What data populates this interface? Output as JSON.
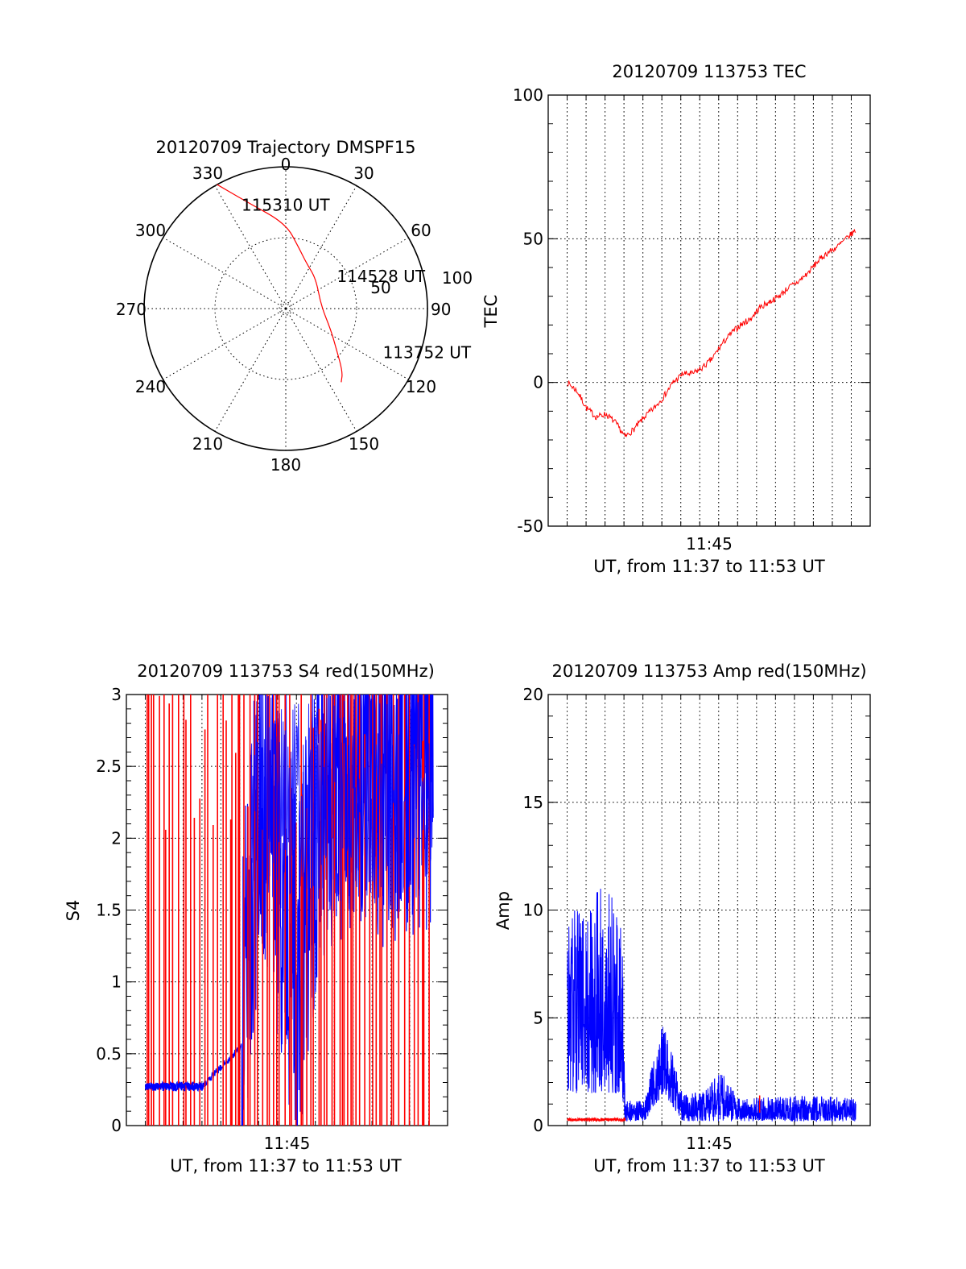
{
  "chart_data": [
    {
      "type": "polar",
      "title": "20120709 Trajectory DMSPF15",
      "angle_ticks": [
        "0",
        "30",
        "60",
        "90",
        "120",
        "150",
        "180",
        "210",
        "240",
        "270",
        "300",
        "330"
      ],
      "radial_ticks": [
        "50",
        "100"
      ],
      "radius_max": 100,
      "series": [
        {
          "color": "#ff0000",
          "points_r_theta": [
            [
              65,
              143
            ],
            [
              60,
              138
            ],
            [
              45,
              128
            ],
            [
              35,
              115
            ],
            [
              25,
              85
            ],
            [
              30,
              45
            ],
            [
              35,
              25
            ],
            [
              44,
              12
            ],
            [
              60,
              0
            ],
            [
              80,
              340
            ],
            [
              100,
              331
            ]
          ]
        }
      ],
      "annotations": [
        {
          "text": "115310 UT",
          "r": 80,
          "theta": 337
        },
        {
          "text": "114528 UT",
          "r": 43,
          "theta": 57
        },
        {
          "text": "113752 UT",
          "r": 75,
          "theta": 114
        }
      ]
    },
    {
      "type": "line",
      "title": "20120709 113753 TEC",
      "ylabel": "TEC",
      "xlabel": "UT, from 11:37 to 11:53 UT",
      "x_tick_labels": [
        "11:45"
      ],
      "ylim": [
        -50,
        100
      ],
      "yticks": [
        -50,
        0,
        50,
        100
      ],
      "grid": true,
      "series": [
        {
          "color": "#ff0000",
          "time_points": [
            "11:38:00",
            "11:38:30",
            "11:39:00",
            "11:39:30",
            "11:40:00",
            "11:40:30",
            "11:41:00",
            "11:41:30",
            "11:42:00",
            "11:42:30",
            "11:43:00",
            "11:43:30",
            "11:44:00",
            "11:44:30",
            "11:45:00",
            "11:45:30",
            "11:46:00",
            "11:46:30",
            "11:47:00",
            "11:47:30",
            "11:48:00",
            "11:48:30",
            "11:49:00",
            "11:49:30",
            "11:50:00",
            "11:50:30",
            "11:51:00",
            "11:51:30",
            "11:52:00",
            "11:52:30",
            "11:53:00"
          ],
          "values": [
            0,
            -3,
            -9,
            -12,
            -11,
            -14,
            -19,
            -16,
            -12,
            -9,
            -5,
            0,
            3,
            3,
            5,
            8,
            13,
            17,
            20,
            22,
            26,
            28,
            30,
            33,
            35,
            38,
            42,
            45,
            47,
            50,
            53
          ]
        }
      ]
    },
    {
      "type": "line",
      "title": "20120709 113753 S4 red(150MHz)",
      "ylabel": "S4",
      "xlabel": "UT, from 11:37 to 11:53 UT",
      "x_tick_labels": [
        "11:45"
      ],
      "ylim": [
        0,
        3
      ],
      "yticks": [
        "0",
        "0.5",
        "1",
        "1.5",
        "2",
        "2.5",
        "3"
      ],
      "grid": true,
      "series": [
        {
          "color": "#0000ff",
          "time_points": [
            "11:38:00",
            "11:39:30",
            "11:41:00",
            "11:43:00",
            "11:44:00",
            "11:46:00",
            "11:47:00",
            "11:48:30",
            "11:50:00",
            "11:51:30",
            "11:53:00"
          ],
          "values": [
            0.27,
            0.28,
            0.28,
            0.55,
            2.6,
            1.0,
            2.4,
            2.6,
            2.5,
            2.6,
            2.6
          ]
        },
        {
          "color": "#ff0000",
          "description_values": "values saturate between 0 and 3 throughout the interval",
          "time_points": [
            "11:38:00",
            "11:53:00"
          ],
          "values": [
            3,
            3
          ]
        }
      ]
    },
    {
      "type": "line",
      "title": "20120709 113753 Amp red(150MHz)",
      "ylabel": "Amp",
      "xlabel": "UT, from 11:37 to 11:53 UT",
      "x_tick_labels": [
        "11:45"
      ],
      "ylim": [
        0,
        20
      ],
      "yticks": [
        0,
        5,
        10,
        15,
        20
      ],
      "grid": true,
      "series": [
        {
          "color": "#0000ff",
          "time_points": [
            "11:38:00",
            "11:39:00",
            "11:40:00",
            "11:40:50",
            "11:41:00",
            "11:42:00",
            "11:43:00",
            "11:44:00",
            "11:45:00",
            "11:46:00",
            "11:47:00",
            "11:48:00",
            "11:50:00",
            "11:53:00"
          ],
          "upper_envelope": [
            10.0,
            10.5,
            11.5,
            9.5,
            1.2,
            1.3,
            5.0,
            1.4,
            1.6,
            2.5,
            1.2,
            1.3,
            1.4,
            1.3
          ],
          "lower_envelope": [
            1.5,
            1.5,
            1.5,
            1.5,
            0.2,
            0.2,
            1.5,
            0.2,
            0.2,
            0.2,
            0.2,
            0.2,
            0.2,
            0.2
          ]
        },
        {
          "color": "#ff0000",
          "time_points": [
            "11:38:00",
            "11:41:00",
            "11:48:00",
            "11:53:00"
          ],
          "values": [
            0.2,
            0.25,
            1.4,
            0.2
          ]
        }
      ]
    }
  ]
}
